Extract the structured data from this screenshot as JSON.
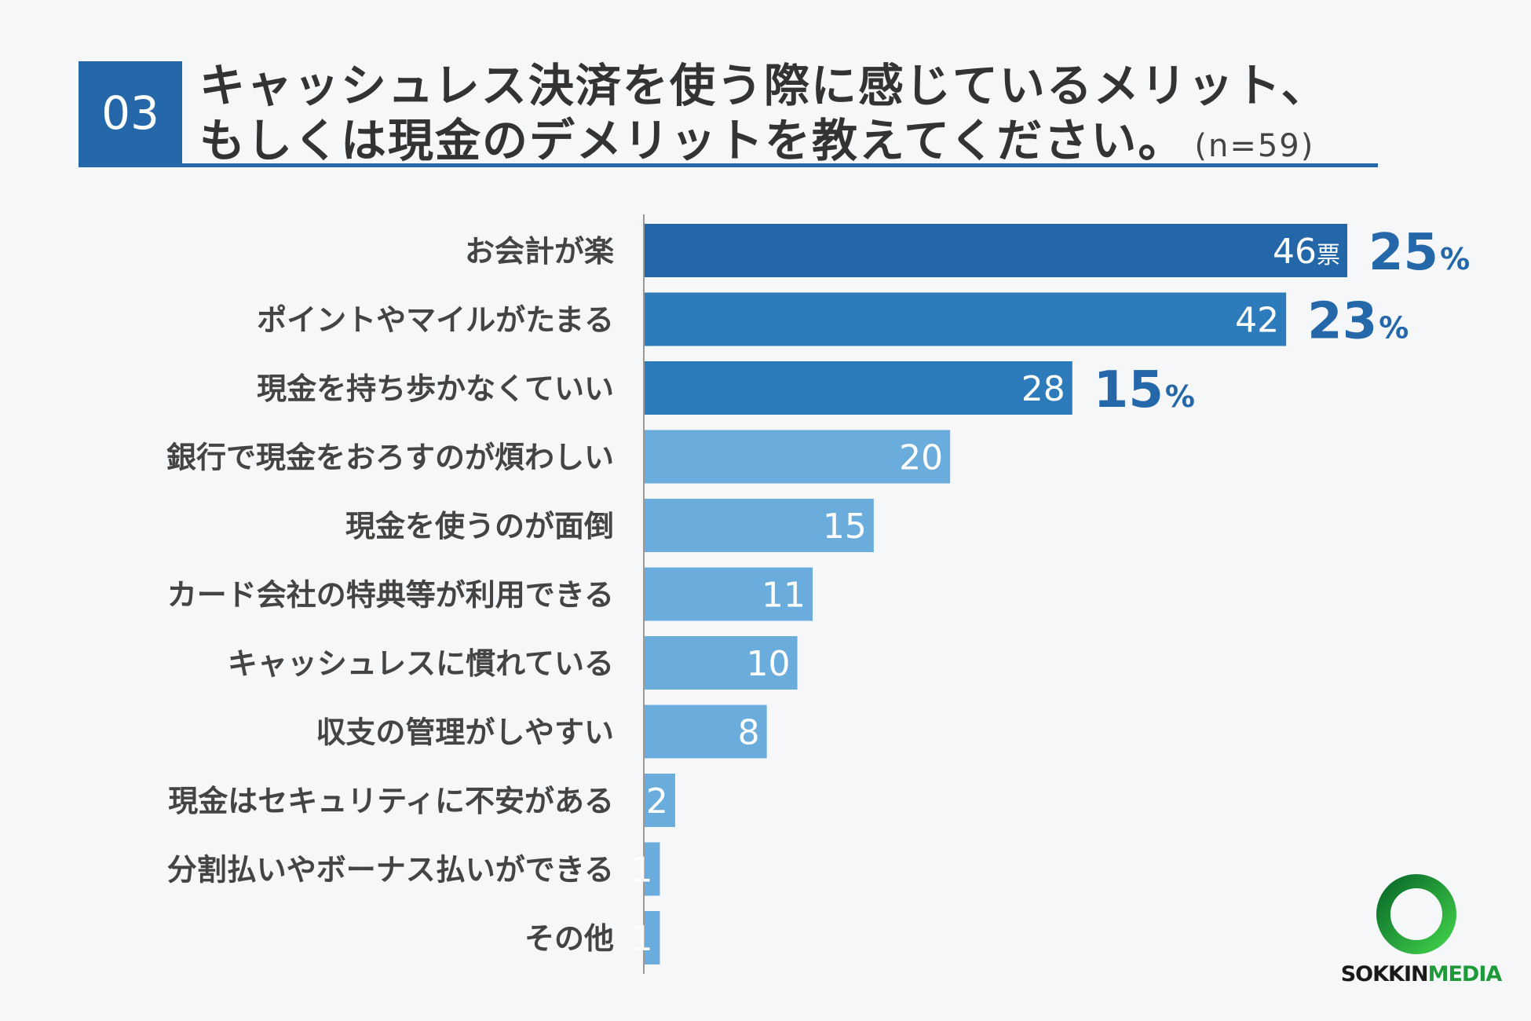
{
  "header": {
    "number": "03",
    "title_line1": "キャッシュレス決済を使う際に感じているメリット、",
    "title_line2": "もしくは現金のデメリットを教えてください。",
    "sample_size": "(n=59)"
  },
  "colors": {
    "accent": "#2468a9",
    "bar_dark": "#2467a8",
    "bar_mid": "#2d7bbb",
    "bar_light": "#6aacdb",
    "logo_green": "#1f9a3a"
  },
  "chart_data": {
    "type": "bar",
    "orientation": "horizontal",
    "categories": [
      "お会計が楽",
      "ポイントやマイルがたまる",
      "現金を持ち歩かなくていい",
      "銀行で現金をおろすのが煩わしい",
      "現金を使うのが面倒",
      "カード会社の特典等が利用できる",
      "キャッシュレスに慣れている",
      "収支の管理がしやすい",
      "現金はセキュリティに不安がある",
      "分割払いやボーナス払いができる",
      "その他"
    ],
    "values": [
      46,
      42,
      28,
      20,
      15,
      11,
      10,
      8,
      2,
      1,
      1
    ],
    "value_labels": [
      "46",
      "42",
      "28",
      "20",
      "15",
      "11",
      "10",
      "8",
      "2",
      "1",
      "1"
    ],
    "unit_label": "票",
    "percent_labels": [
      {
        "value": "25",
        "suffix": "%"
      },
      {
        "value": "23",
        "suffix": "%"
      },
      {
        "value": "15",
        "suffix": "%"
      }
    ],
    "xlim": [
      0,
      46
    ]
  },
  "logo": {
    "text_a": "SOKKIN",
    "text_b": "MEDIA"
  }
}
